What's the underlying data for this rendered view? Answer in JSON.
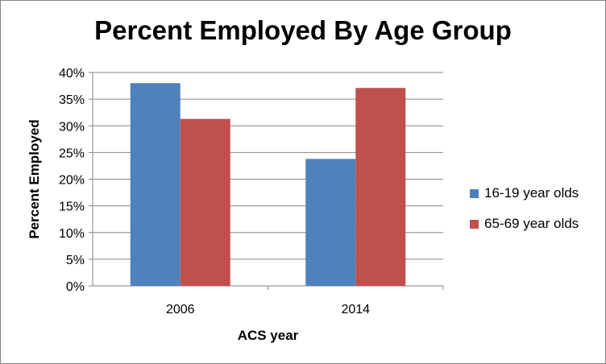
{
  "chart_data": {
    "type": "bar",
    "title": "Percent Employed By Age Group",
    "xlabel": "ACS year",
    "ylabel": "Percent Employed",
    "categories": [
      "2006",
      "2014"
    ],
    "series": [
      {
        "name": "16-19 year olds",
        "values": [
          38,
          23.8
        ],
        "color": "#4F81BD"
      },
      {
        "name": "65-69 year olds",
        "values": [
          31.3,
          37.1
        ],
        "color": "#C0504D"
      }
    ],
    "ylim": [
      0,
      40
    ],
    "yticks": [
      0,
      5,
      10,
      15,
      20,
      25,
      30,
      35,
      40
    ],
    "ytick_labels": [
      "0%",
      "5%",
      "10%",
      "15%",
      "20%",
      "25%",
      "30%",
      "35%",
      "40%"
    ],
    "grid": true,
    "legend_position": "right"
  }
}
